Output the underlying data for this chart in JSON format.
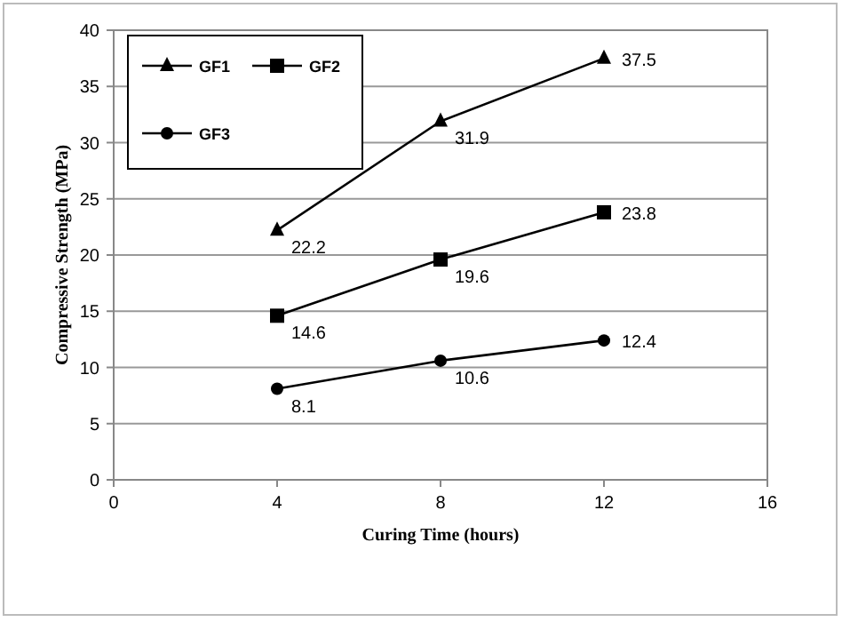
{
  "chart_data": {
    "type": "line",
    "xlabel": "Curing Time (hours)",
    "ylabel": "Compressive Strength (MPa)",
    "x": [
      4,
      8,
      12
    ],
    "series": [
      {
        "name": "GF1",
        "color": "#000000",
        "marker": "triangle",
        "values": [
          22.2,
          31.9,
          37.5
        ]
      },
      {
        "name": "GF2",
        "color": "#000000",
        "marker": "square",
        "values": [
          14.6,
          19.6,
          23.8
        ]
      },
      {
        "name": "GF3",
        "color": "#000000",
        "marker": "circle",
        "values": [
          8.1,
          10.6,
          12.4
        ]
      }
    ],
    "xlim": [
      0,
      16
    ],
    "xticks": [
      0,
      4,
      8,
      12,
      16
    ],
    "ylim": [
      0,
      40
    ],
    "yticks": [
      0,
      5,
      10,
      15,
      20,
      25,
      30,
      35,
      40
    ],
    "grid": "y",
    "legend": "top left",
    "data_labels": true,
    "line_style": "solid"
  }
}
